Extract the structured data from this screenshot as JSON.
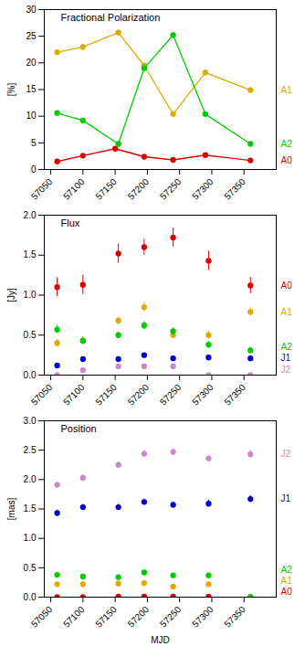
{
  "chart_data": [
    {
      "type": "line",
      "title": "Fractional Polarization",
      "ylabel": "[%]",
      "marker": "circle",
      "grid": false,
      "xlim": [
        57040,
        57400
      ],
      "xticks": [
        57050,
        57100,
        57150,
        57200,
        57250,
        57300,
        57350
      ],
      "ylim": [
        0,
        30
      ],
      "yticks": [
        0,
        5,
        10,
        15,
        20,
        25,
        30
      ],
      "series": [
        {
          "name": "A0",
          "color": "#dd0000",
          "x": [
            57060,
            57100,
            57150,
            57195,
            57240,
            57290,
            57360
          ],
          "values": [
            1.5,
            2.6,
            3.9,
            2.4,
            1.8,
            2.7,
            1.7
          ],
          "yerr": [
            0.2,
            0.2,
            0.3,
            0.2,
            0.2,
            0.2,
            0.2
          ]
        },
        {
          "name": "A1",
          "color": "#ddaa00",
          "x": [
            57060,
            57100,
            57155,
            57195,
            57240,
            57290,
            57360
          ],
          "values": [
            22.0,
            23.0,
            25.7,
            19.5,
            10.4,
            18.2,
            14.9
          ],
          "yerr": [
            0.5,
            0.5,
            0.5,
            0.5,
            0.5,
            0.5,
            0.5
          ]
        },
        {
          "name": "A2",
          "color": "#00cc00",
          "x": [
            57060,
            57100,
            57155,
            57195,
            57240,
            57290,
            57360
          ],
          "values": [
            10.6,
            9.2,
            4.8,
            19.0,
            25.2,
            10.4,
            4.8
          ],
          "yerr": [
            0.4,
            0.4,
            0.4,
            0.5,
            0.5,
            0.4,
            0.3
          ]
        }
      ]
    },
    {
      "type": "scatter",
      "title": "Flux",
      "ylabel": "[Jy]",
      "marker": "circle",
      "grid": false,
      "xlim": [
        57040,
        57400
      ],
      "xticks": [
        57050,
        57100,
        57150,
        57200,
        57250,
        57300,
        57350
      ],
      "ylim": [
        0,
        2.0
      ],
      "yticks": [
        {
          "value": 0,
          "label": "0.0"
        },
        0.5,
        {
          "value": 1.0,
          "label": "1.0"
        },
        1.5,
        {
          "value": 2.0,
          "label": "2.0"
        }
      ],
      "series": [
        {
          "name": "A0",
          "color": "#dd0000",
          "x": [
            57060,
            57100,
            57155,
            57195,
            57240,
            57295,
            57360
          ],
          "values": [
            1.1,
            1.13,
            1.52,
            1.6,
            1.72,
            1.43,
            1.12
          ],
          "yerr": [
            0.12,
            0.12,
            0.12,
            0.1,
            0.12,
            0.12,
            0.1
          ]
        },
        {
          "name": "A1",
          "color": "#ddaa00",
          "x": [
            57060,
            57100,
            57155,
            57195,
            57240,
            57295,
            57360
          ],
          "values": [
            0.4,
            0.43,
            0.68,
            0.85,
            0.5,
            0.5,
            0.79
          ],
          "yerr": [
            0.05,
            0.05,
            0.05,
            0.06,
            0.05,
            0.05,
            0.05
          ]
        },
        {
          "name": "A2",
          "color": "#00cc00",
          "x": [
            57060,
            57100,
            57155,
            57195,
            57240,
            57295,
            57360
          ],
          "values": [
            0.57,
            0.43,
            0.5,
            0.62,
            0.55,
            0.38,
            0.31
          ],
          "yerr": [
            0.05,
            0.04,
            0.04,
            0.05,
            0.04,
            0.04,
            0.04
          ]
        },
        {
          "name": "J2",
          "color": "#cc88cc",
          "x": [
            57060,
            57100,
            57155,
            57195,
            57240,
            57295,
            57360
          ],
          "values": [
            0.0,
            0.06,
            0.11,
            0.11,
            0.11,
            0.0,
            0.0
          ],
          "yerr": [
            0.0,
            0.01,
            0.01,
            0.01,
            0.01,
            0.0,
            0.0
          ]
        },
        {
          "name": "J1",
          "color": "#0000cc",
          "x": [
            57060,
            57100,
            57155,
            57195,
            57240,
            57295,
            57360
          ],
          "values": [
            0.12,
            0.2,
            0.2,
            0.25,
            0.21,
            0.22,
            0.21
          ],
          "yerr": [
            0.02,
            0.02,
            0.02,
            0.02,
            0.02,
            0.02,
            0.02
          ]
        }
      ]
    },
    {
      "type": "scatter",
      "title": "Position",
      "ylabel": "[mas]",
      "xlabel": "MJD",
      "marker": "circle",
      "grid": false,
      "xlim": [
        57040,
        57400
      ],
      "xticks": [
        57050,
        57100,
        57150,
        57200,
        57250,
        57300,
        57350
      ],
      "ylim": [
        0,
        3.0
      ],
      "yticks": [
        {
          "value": 0,
          "label": "0.0"
        },
        0.5,
        {
          "value": 1.0,
          "label": "1.0"
        },
        1.5,
        {
          "value": 2.0,
          "label": "2.0"
        },
        2.5,
        {
          "value": 3.0,
          "label": "3.0"
        }
      ],
      "series": [
        {
          "name": "A0",
          "color": "#dd0000",
          "x": [
            57060,
            57100,
            57155,
            57195,
            57240,
            57295,
            57360
          ],
          "values": [
            0.0,
            0.0,
            0.01,
            0.01,
            0.01,
            0.01,
            0.0
          ],
          "yerr": [
            0.0,
            0.0,
            0.0,
            0.0,
            0.0,
            0.0,
            0.0
          ]
        },
        {
          "name": "A1",
          "color": "#ddaa00",
          "x": [
            57060,
            57100,
            57155,
            57195,
            57240,
            57295,
            57360
          ],
          "values": [
            0.22,
            0.22,
            0.23,
            0.24,
            0.18,
            0.22,
            0.0
          ],
          "yerr": [
            0.0,
            0.0,
            0.0,
            0.0,
            0.0,
            0.0,
            0.0
          ]
        },
        {
          "name": "A2",
          "color": "#00cc00",
          "x": [
            57060,
            57100,
            57155,
            57195,
            57240,
            57295,
            57360
          ],
          "values": [
            0.38,
            0.35,
            0.34,
            0.42,
            0.37,
            0.37,
            0.0
          ],
          "yerr": [
            0.0,
            0.0,
            0.0,
            0.0,
            0.0,
            0.0,
            0.0
          ]
        },
        {
          "name": "J2",
          "color": "#cc88cc",
          "x": [
            57060,
            57100,
            57155,
            57195,
            57240,
            57295,
            57360
          ],
          "values": [
            1.91,
            2.03,
            2.25,
            2.44,
            2.47,
            2.36,
            2.43
          ],
          "yerr": [
            0.05,
            0.05,
            0.05,
            0.06,
            0.06,
            0.05,
            0.07
          ]
        },
        {
          "name": "J1",
          "color": "#0000cc",
          "x": [
            57060,
            57100,
            57155,
            57195,
            57240,
            57295,
            57360
          ],
          "values": [
            1.43,
            1.53,
            1.53,
            1.62,
            1.57,
            1.59,
            1.67
          ],
          "yerr": [
            0.05,
            0.05,
            0.05,
            0.05,
            0.05,
            0.06,
            0.06
          ]
        }
      ]
    }
  ]
}
